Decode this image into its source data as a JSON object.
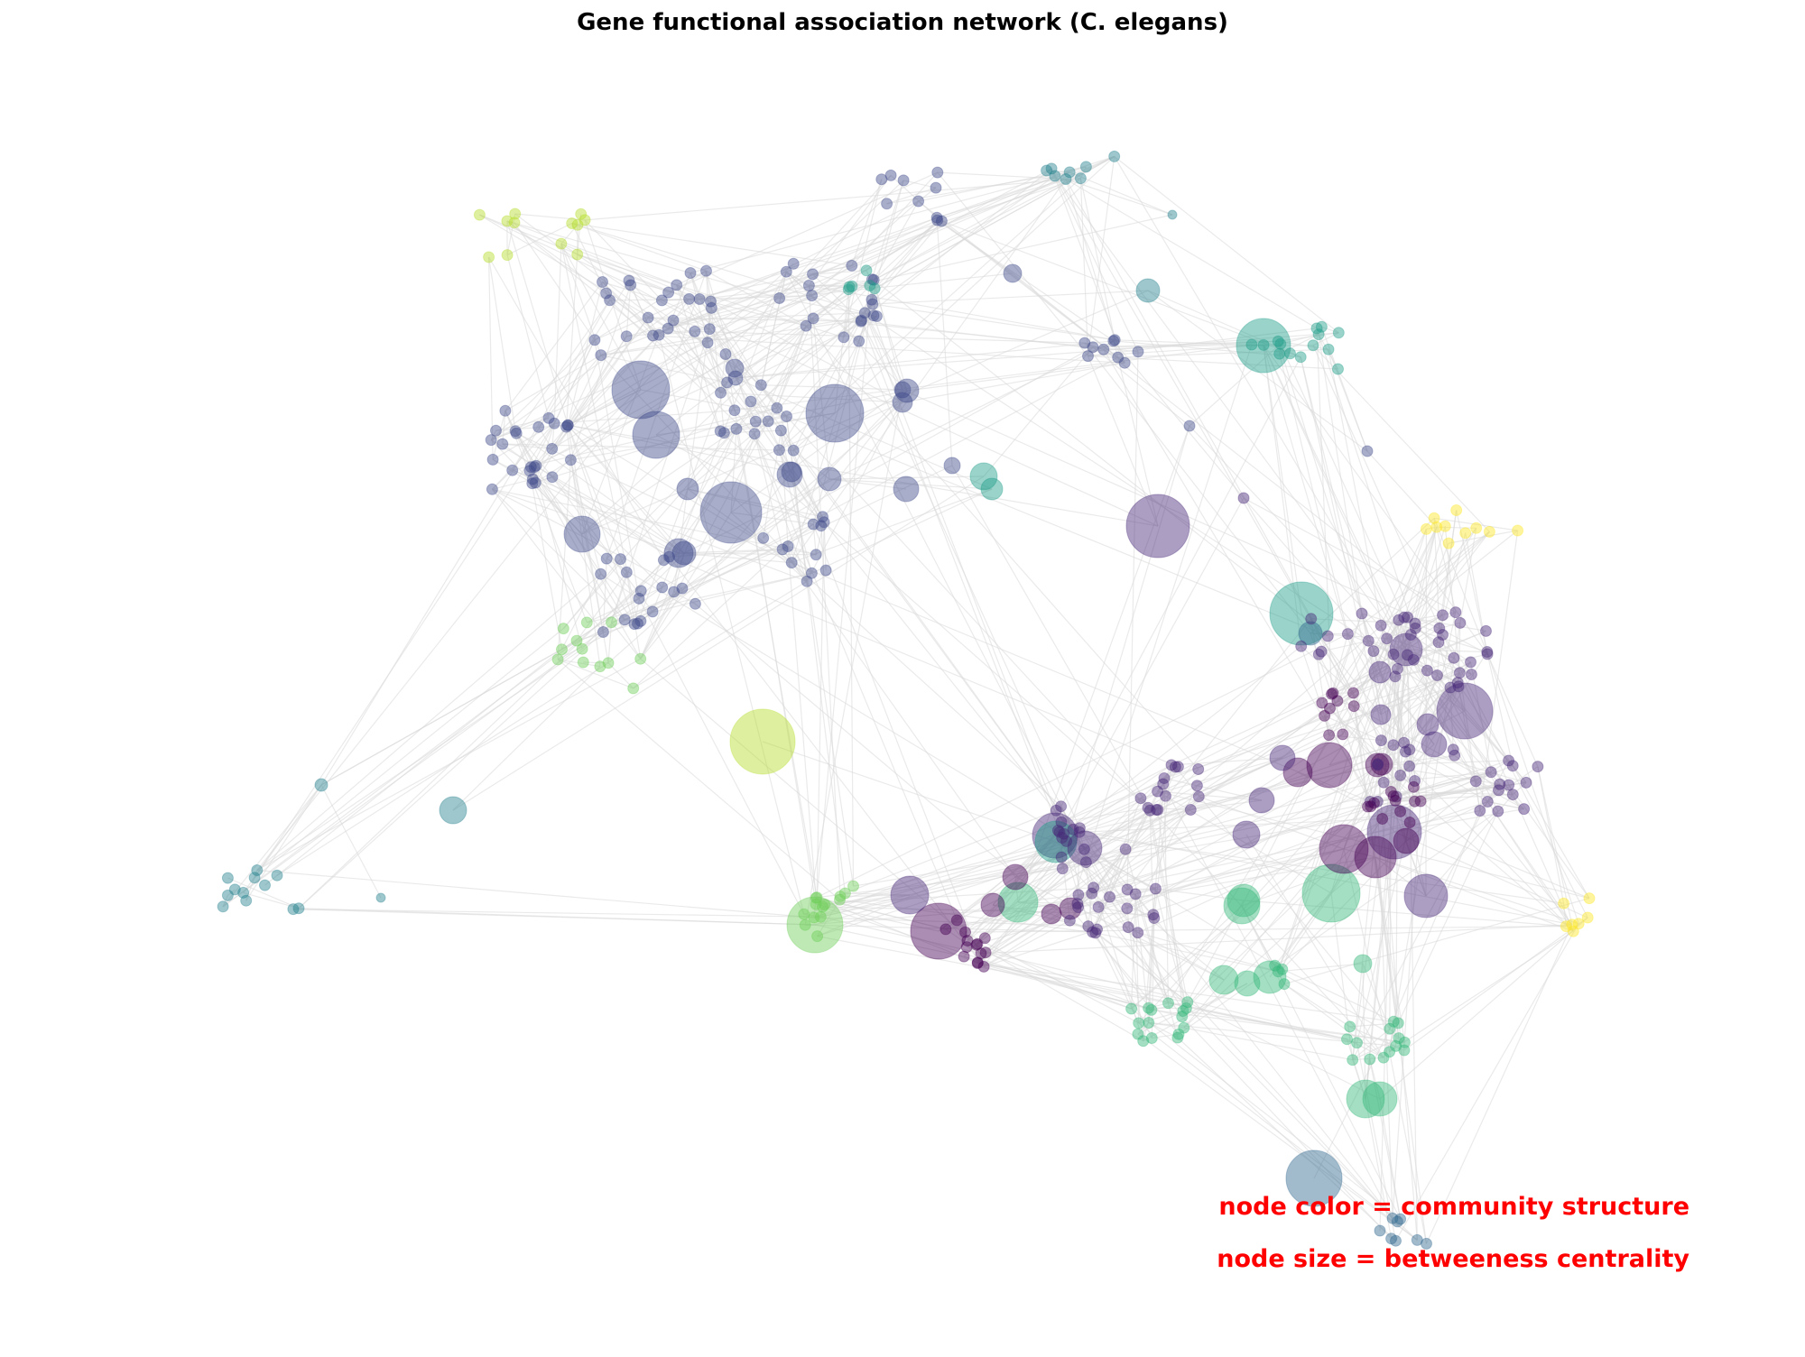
{
  "title": "Gene functional association network (C. elegans)",
  "legend": {
    "color_note": "node color = community structure",
    "size_note": "node size = betweeness centrality"
  },
  "edge_color": "#d9d9d9",
  "communities": {
    "c0": "#440154",
    "c1": "#482878",
    "c2": "#3e4a89",
    "c3": "#31688e",
    "c4": "#26828e",
    "c5": "#1f9e89",
    "c6": "#35b779",
    "c7": "#6ece58",
    "c8": "#b5de2b",
    "c9": "#fde725"
  }
}
